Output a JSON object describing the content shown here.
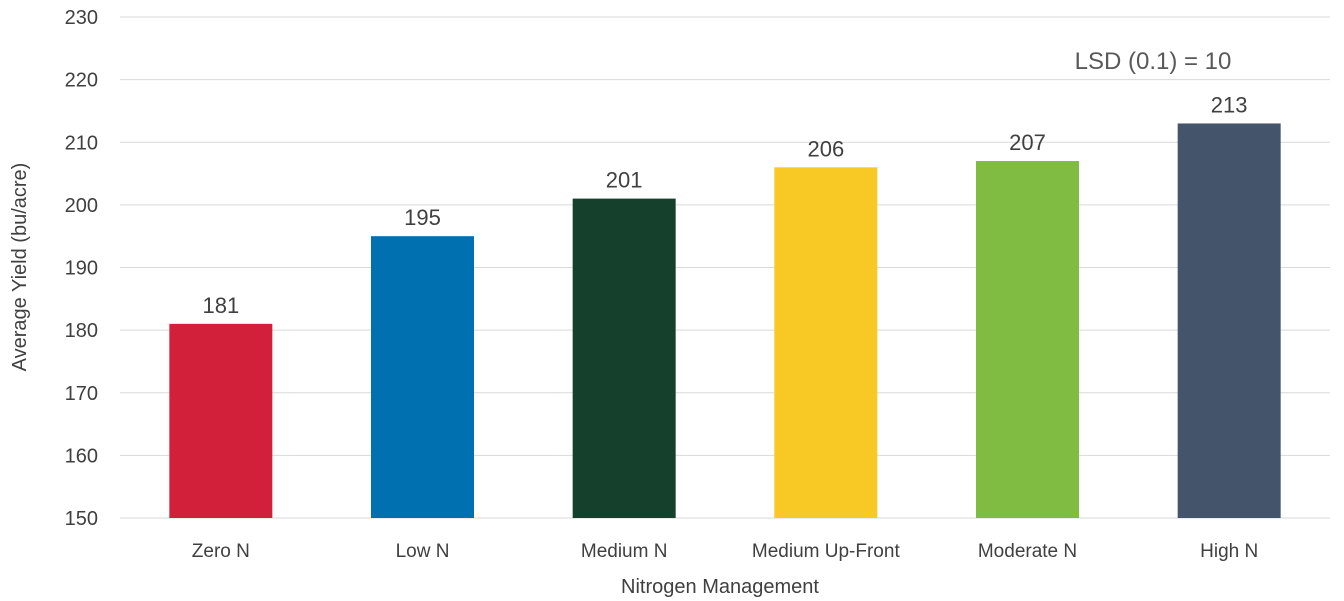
{
  "chart_data": {
    "type": "bar",
    "categories": [
      "Zero N",
      "Low N",
      "Medium N",
      "Medium Up-Front",
      "Moderate N",
      "High N"
    ],
    "values": [
      181,
      195,
      201,
      206,
      207,
      213
    ],
    "data_labels": [
      "181",
      "195",
      "201",
      "206",
      "207",
      "213"
    ],
    "colors": [
      "#d2203a",
      "#0070b0",
      "#15402b",
      "#f8c924",
      "#7fbc41",
      "#44546a"
    ],
    "xlabel": "Nitrogen Management",
    "ylabel": "Average Yield (bu/acre)",
    "ylim": [
      150,
      230
    ],
    "yticks": [
      "150",
      "160",
      "170",
      "180",
      "190",
      "200",
      "210",
      "220",
      "230"
    ],
    "grid": true,
    "legend": "none",
    "annotation": "LSD (0.1) = 10"
  }
}
